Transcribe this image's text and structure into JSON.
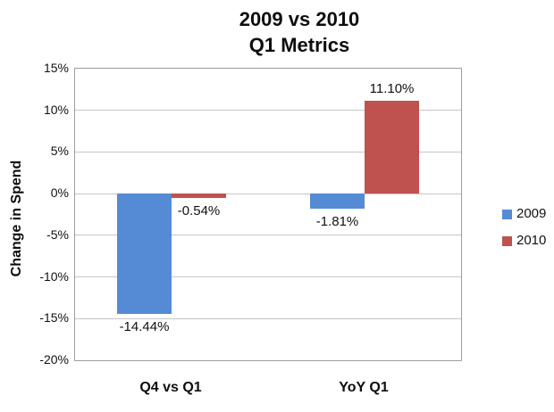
{
  "chart_data": {
    "type": "bar",
    "title_line1": "2009 vs 2010",
    "title_line2": "Q1 Metrics",
    "ylabel": "Change in Spend",
    "xlabel": "",
    "categories": [
      "Q4 vs Q1",
      "YoY Q1"
    ],
    "series": [
      {
        "name": "2009",
        "color": "#558BD4",
        "values": [
          -14.44,
          -1.81
        ],
        "data_labels": [
          "-14.44%",
          "-1.81%"
        ]
      },
      {
        "name": "2010",
        "color": "#BF514F",
        "values": [
          -0.54,
          11.1
        ],
        "data_labels": [
          "-0.54%",
          "11.10%"
        ]
      }
    ],
    "ylim": [
      -20,
      15
    ],
    "ytick_step": 5,
    "ytick_labels": [
      "15%",
      "10%",
      "5%",
      "0%",
      "-5%",
      "-10%",
      "-15%",
      "-20%"
    ],
    "grid": true,
    "legend_position": "right"
  }
}
